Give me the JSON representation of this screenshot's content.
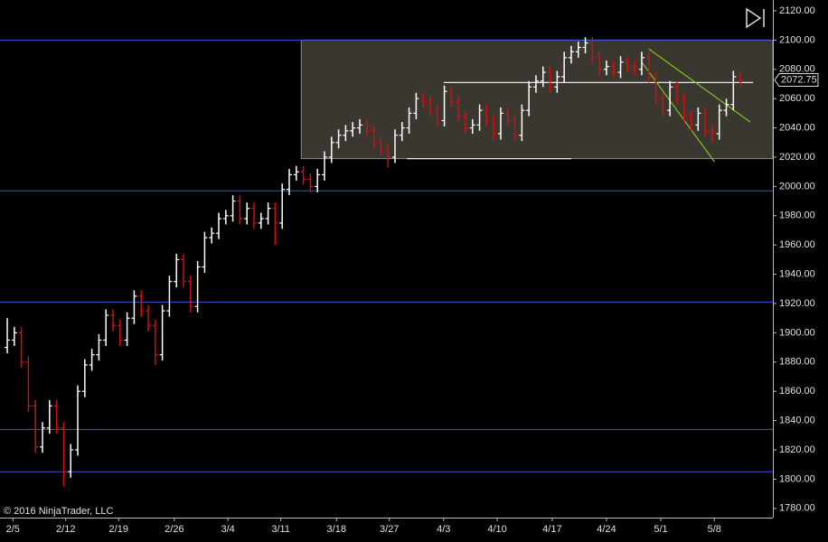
{
  "chart_data": {
    "type": "ohlc",
    "copyright": "© 2016 NinjaTrader, LLC",
    "up_color": "#ffffff",
    "down_color": "#cc1111",
    "series": [
      {
        "open": [
          1890,
          1895,
          1900,
          1880,
          1850,
          1822,
          1835,
          1850,
          1835,
          1805,
          1820,
          1860,
          1878,
          1885,
          1895,
          1912,
          1905,
          1895,
          1910,
          1925,
          1915,
          1905,
          1885,
          1915,
          1935,
          1950,
          1935,
          1918,
          1945,
          1965,
          1968,
          1978,
          1980,
          1990,
          1978,
          1985,
          1975,
          1978,
          1985,
          1975,
          1998,
          2008,
          2010,
          2005,
          2000,
          2008,
          2020,
          2030,
          2035,
          2038,
          2040,
          2042,
          2038,
          2030,
          2025,
          2020,
          2035,
          2040,
          2050,
          2060,
          2058,
          2052,
          2045,
          2065,
          2058,
          2048,
          2040,
          2042,
          2052,
          2045,
          2036,
          2050,
          2045,
          2035,
          2052,
          2068,
          2072,
          2078,
          2068,
          2075,
          2088,
          2092,
          2095,
          2098,
          2088,
          2080,
          2082,
          2078,
          2085,
          2082,
          2080,
          2088,
          2075,
          2060,
          2052,
          2068,
          2060,
          2048,
          2042,
          2050,
          2038,
          2036,
          2052,
          2056,
          2075
        ],
        "high": [
          1910,
          1904,
          1904,
          1884,
          1854,
          1839,
          1854,
          1854,
          1839,
          1824,
          1864,
          1882,
          1889,
          1899,
          1916,
          1916,
          1909,
          1914,
          1929,
          1929,
          1919,
          1909,
          1919,
          1939,
          1954,
          1954,
          1939,
          1949,
          1969,
          1972,
          1982,
          1984,
          1994,
          1994,
          1989,
          1989,
          1982,
          1989,
          1989,
          2002,
          2012,
          2014,
          2014,
          2009,
          2012,
          2024,
          2034,
          2039,
          2042,
          2044,
          2046,
          2046,
          2042,
          2034,
          2029,
          2039,
          2044,
          2054,
          2064,
          2064,
          2062,
          2056,
          2069,
          2069,
          2062,
          2052,
          2046,
          2056,
          2056,
          2049,
          2054,
          2054,
          2049,
          2056,
          2072,
          2076,
          2082,
          2082,
          2079,
          2092,
          2096,
          2099,
          2102,
          2102,
          2092,
          2086,
          2086,
          2089,
          2089,
          2086,
          2092,
          2092,
          2079,
          2064,
          2072,
          2072,
          2064,
          2052,
          2054,
          2054,
          2042,
          2056,
          2060,
          2079,
          2079
        ],
        "low": [
          1886,
          1891,
          1876,
          1846,
          1818,
          1818,
          1831,
          1831,
          1795,
          1801,
          1816,
          1856,
          1874,
          1881,
          1891,
          1901,
          1891,
          1891,
          1906,
          1911,
          1901,
          1878,
          1881,
          1911,
          1931,
          1931,
          1914,
          1914,
          1941,
          1961,
          1964,
          1974,
          1976,
          1974,
          1974,
          1971,
          1971,
          1974,
          1960,
          1971,
          1994,
          2004,
          2001,
          1996,
          1996,
          2004,
          2016,
          2026,
          2031,
          2034,
          2036,
          2034,
          2026,
          2021,
          2013,
          2016,
          2031,
          2036,
          2046,
          2054,
          2048,
          2041,
          2041,
          2054,
          2044,
          2036,
          2036,
          2038,
          2041,
          2032,
          2032,
          2041,
          2031,
          2031,
          2048,
          2064,
          2068,
          2064,
          2064,
          2071,
          2084,
          2088,
          2091,
          2084,
          2076,
          2076,
          2074,
          2074,
          2078,
          2076,
          2076,
          2071,
          2056,
          2048,
          2048,
          2056,
          2044,
          2038,
          2038,
          2034,
          2030,
          2032,
          2048,
          2052,
          2068
        ],
        "close": [
          1895,
          1900,
          1880,
          1850,
          1822,
          1835,
          1850,
          1835,
          1805,
          1820,
          1860,
          1878,
          1885,
          1895,
          1912,
          1905,
          1895,
          1910,
          1925,
          1915,
          1905,
          1885,
          1915,
          1935,
          1950,
          1935,
          1918,
          1945,
          1965,
          1968,
          1978,
          1980,
          1990,
          1978,
          1985,
          1975,
          1978,
          1985,
          1975,
          1998,
          2008,
          2010,
          2005,
          2000,
          2008,
          2020,
          2030,
          2035,
          2038,
          2040,
          2042,
          2038,
          2030,
          2025,
          2020,
          2035,
          2040,
          2050,
          2060,
          2058,
          2052,
          2045,
          2065,
          2058,
          2048,
          2040,
          2042,
          2052,
          2045,
          2036,
          2050,
          2045,
          2035,
          2052,
          2068,
          2072,
          2078,
          2068,
          2075,
          2088,
          2092,
          2095,
          2098,
          2088,
          2080,
          2082,
          2078,
          2085,
          2082,
          2080,
          2088,
          2075,
          2060,
          2052,
          2068,
          2060,
          2048,
          2042,
          2050,
          2038,
          2036,
          2052,
          2056,
          2075,
          2072.75
        ]
      }
    ],
    "xlim": [
      -1.03,
      108.6
    ],
    "ylim": [
      1773.7,
      2127.4
    ],
    "xticks": [
      {
        "value": 0.8,
        "label": "2/5"
      },
      {
        "value": 8.3,
        "label": "2/12"
      },
      {
        "value": 15.8,
        "label": "2/19"
      },
      {
        "value": 23.7,
        "label": "2/26"
      },
      {
        "value": 31.3,
        "label": "3/4"
      },
      {
        "value": 38.8,
        "label": "3/11"
      },
      {
        "value": 46.7,
        "label": "3/18"
      },
      {
        "value": 54.2,
        "label": "3/27"
      },
      {
        "value": 61.9,
        "label": "4/3"
      },
      {
        "value": 69.5,
        "label": "4/10"
      },
      {
        "value": 77.3,
        "label": "4/17"
      },
      {
        "value": 85,
        "label": "4/24"
      },
      {
        "value": 92.7,
        "label": "5/1"
      },
      {
        "value": 100.3,
        "label": "5/8"
      }
    ],
    "yticks": [
      {
        "value": 1780,
        "label": "1780.00"
      },
      {
        "value": 1800,
        "label": "1800.00"
      },
      {
        "value": 1820,
        "label": "1820.00"
      },
      {
        "value": 1840,
        "label": "1840.00"
      },
      {
        "value": 1860,
        "label": "1860.00"
      },
      {
        "value": 1880,
        "label": "1880.00"
      },
      {
        "value": 1900,
        "label": "1900.00"
      },
      {
        "value": 1920,
        "label": "1920.00"
      },
      {
        "value": 1940,
        "label": "1940.00"
      },
      {
        "value": 1960,
        "label": "1960.00"
      },
      {
        "value": 1980,
        "label": "1980.00"
      },
      {
        "value": 2000,
        "label": "2000.00"
      },
      {
        "value": 2020,
        "label": "2020.00"
      },
      {
        "value": 2040,
        "label": "2040.00"
      },
      {
        "value": 2060,
        "label": "2060.00"
      },
      {
        "value": 2080,
        "label": "2080.00"
      },
      {
        "value": 2100,
        "label": "2100.00"
      },
      {
        "value": 2120,
        "label": "2120.00"
      }
    ],
    "horizontal_lines": {
      "color": "#3a55d8",
      "values": [
        2100,
        1997,
        1921,
        1834,
        1805
      ]
    },
    "rectangle": {
      "color": "#3a3630",
      "x": [
        41.7,
        108.6
      ],
      "y": [
        2019,
        2100
      ]
    },
    "trend_lines": [
      {
        "color": "#e8e8e8",
        "x": [
          61.9,
          105.8
        ],
        "y": [
          2071,
          2071
        ]
      },
      {
        "color": "#e8e8e8",
        "x": [
          56.7,
          80
        ],
        "y": [
          2019,
          2019
        ]
      },
      {
        "color": "#7fc41c",
        "x": [
          91,
          105.4
        ],
        "y": [
          2094,
          2044
        ]
      },
      {
        "color": "#7fc41c",
        "x": [
          90,
          100.3
        ],
        "y": [
          2085,
          2017
        ]
      }
    ]
  }
}
